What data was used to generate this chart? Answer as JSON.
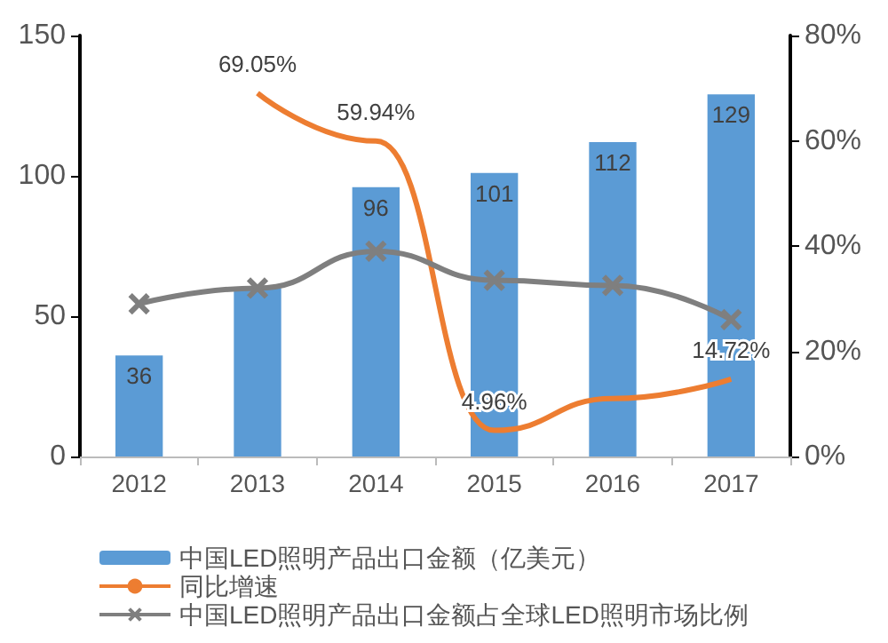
{
  "chart_data": {
    "type": "bar",
    "categories": [
      "2012",
      "2013",
      "2014",
      "2015",
      "2016",
      "2017"
    ],
    "series": [
      {
        "name": "中国LED照明产品出口金额（亿美元）",
        "color": "#5b9bd5",
        "values": [
          36,
          60,
          96,
          101,
          112,
          129
        ],
        "value_labels": [
          "36",
          null,
          "96",
          "101",
          "112",
          "129"
        ]
      },
      {
        "name": "同比增速",
        "type": "line",
        "axis": "y2",
        "color": "#ed7d31",
        "marker": "none",
        "values": [
          null,
          69.05,
          59.94,
          4.96,
          11,
          14.72
        ],
        "value_labels": [
          null,
          "69.05%",
          "59.94%",
          "4.96%",
          null,
          "14.72%"
        ]
      },
      {
        "name": "中国LED照明产品出口金额占全球LED照明市场比例",
        "type": "line",
        "axis": "y2",
        "color": "#7f7f7f",
        "marker": "cross",
        "values": [
          29,
          32,
          39,
          33.5,
          32.5,
          26
        ]
      }
    ],
    "ylim": [
      0,
      150
    ],
    "yticks": [
      0,
      50,
      100,
      150
    ],
    "y2lim": [
      0,
      80
    ],
    "y2ticks": [
      {
        "value": 0,
        "label": "0%"
      },
      {
        "value": 20,
        "label": "20%"
      },
      {
        "value": 40,
        "label": "40%"
      },
      {
        "value": 60,
        "label": "60%"
      },
      {
        "value": 80,
        "label": "80%"
      }
    ],
    "grid": false,
    "legend": "bottom"
  }
}
